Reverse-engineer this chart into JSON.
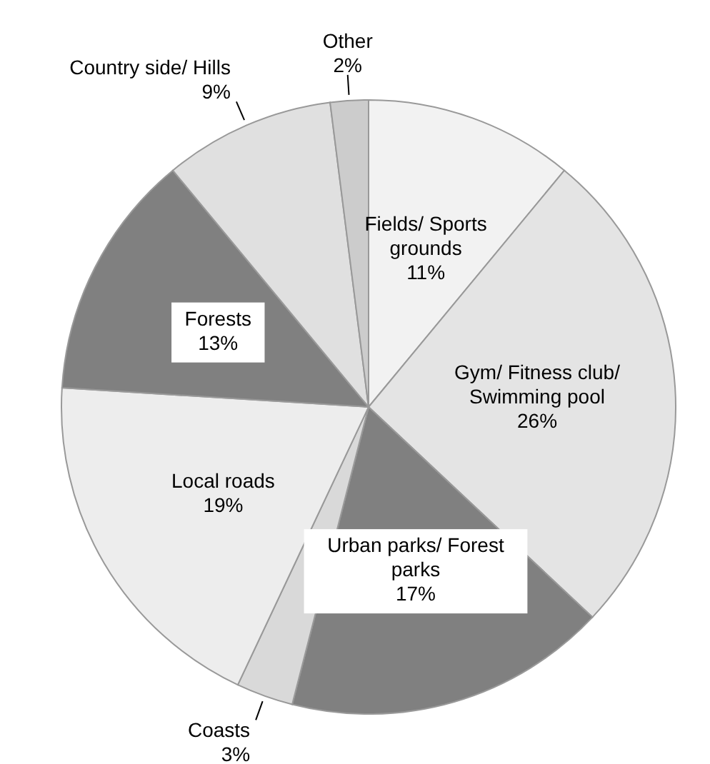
{
  "chart_data": {
    "type": "pie",
    "categories": [
      "Fields/ Sports grounds",
      "Gym/ Fitness club/ Swimming pool",
      "Urban parks/ Forest parks",
      "Coasts",
      "Local roads",
      "Forests",
      "Country side/ Hills",
      "Other"
    ],
    "values": [
      11,
      26,
      17,
      3,
      19,
      13,
      9,
      2
    ],
    "colors": [
      "#f2f2f2",
      "#e4e4e4",
      "#808080",
      "#d9d9d9",
      "#ededed",
      "#808080",
      "#e0e0e0",
      "#cccccc"
    ],
    "value_labels": [
      "11%",
      "26%",
      "17%",
      "3%",
      "19%",
      "13%",
      "9%",
      "2%"
    ],
    "legend": false
  }
}
